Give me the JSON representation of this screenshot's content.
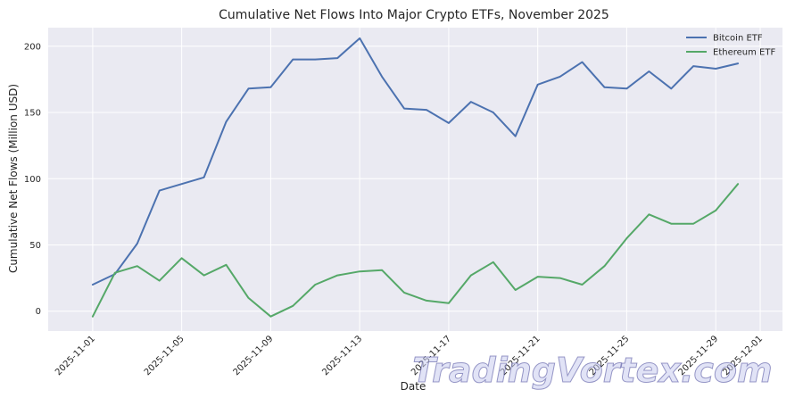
{
  "chart_data": {
    "type": "line",
    "title": "Cumulative Net Flows Into Major Crypto ETFs, November 2025",
    "xlabel": "Date",
    "ylabel": "Cumulative Net Flows (Million USD)",
    "x": [
      "2025-11-01",
      "2025-11-02",
      "2025-11-03",
      "2025-11-04",
      "2025-11-05",
      "2025-11-06",
      "2025-11-07",
      "2025-11-08",
      "2025-11-09",
      "2025-11-10",
      "2025-11-11",
      "2025-11-12",
      "2025-11-13",
      "2025-11-14",
      "2025-11-15",
      "2025-11-16",
      "2025-11-17",
      "2025-11-18",
      "2025-11-19",
      "2025-11-20",
      "2025-11-21",
      "2025-11-22",
      "2025-11-23",
      "2025-11-24",
      "2025-11-25",
      "2025-11-26",
      "2025-11-27",
      "2025-11-28",
      "2025-11-29",
      "2025-11-30"
    ],
    "x_ticks": [
      "2025-11-01",
      "2025-11-05",
      "2025-11-09",
      "2025-11-13",
      "2025-11-17",
      "2025-11-21",
      "2025-11-25",
      "2025-11-29",
      "2025-12-01"
    ],
    "xlim": [
      "2025-10-30",
      "2025-12-02"
    ],
    "y_ticks": [
      0,
      50,
      100,
      150,
      200
    ],
    "ylim": [
      -15,
      214
    ],
    "series": [
      {
        "name": "Bitcoin ETF",
        "color": "#4c72b0",
        "values": [
          20,
          28,
          51,
          91,
          96,
          101,
          143,
          168,
          169,
          190,
          190,
          191,
          206,
          177,
          153,
          152,
          142,
          158,
          150,
          132,
          171,
          177,
          188,
          169,
          168,
          181,
          168,
          185,
          183,
          187
        ]
      },
      {
        "name": "Ethereum ETF",
        "color": "#55a868",
        "values": [
          -4,
          29,
          34,
          23,
          40,
          27,
          35,
          10,
          -4,
          4,
          20,
          27,
          30,
          31,
          14,
          8,
          6,
          27,
          37,
          16,
          26,
          25,
          20,
          34,
          55,
          73,
          66,
          66,
          76,
          96
        ]
      }
    ],
    "grid": true,
    "legend_position": "top-right"
  },
  "watermark": "TradingVortex.com"
}
